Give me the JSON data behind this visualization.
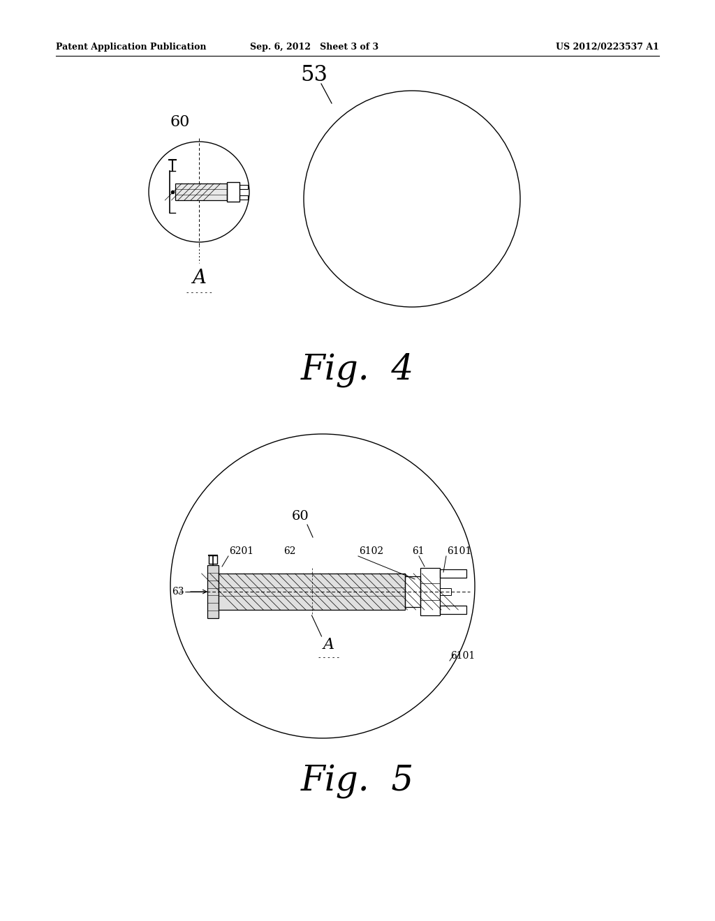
{
  "bg_color": "#ffffff",
  "header_left": "Patent Application Publication",
  "header_mid": "Sep. 6, 2012   Sheet 3 of 3",
  "header_right": "US 2012/0223537 A1",
  "fig4_label": "Fig.  4",
  "fig5_label": "Fig.  5"
}
